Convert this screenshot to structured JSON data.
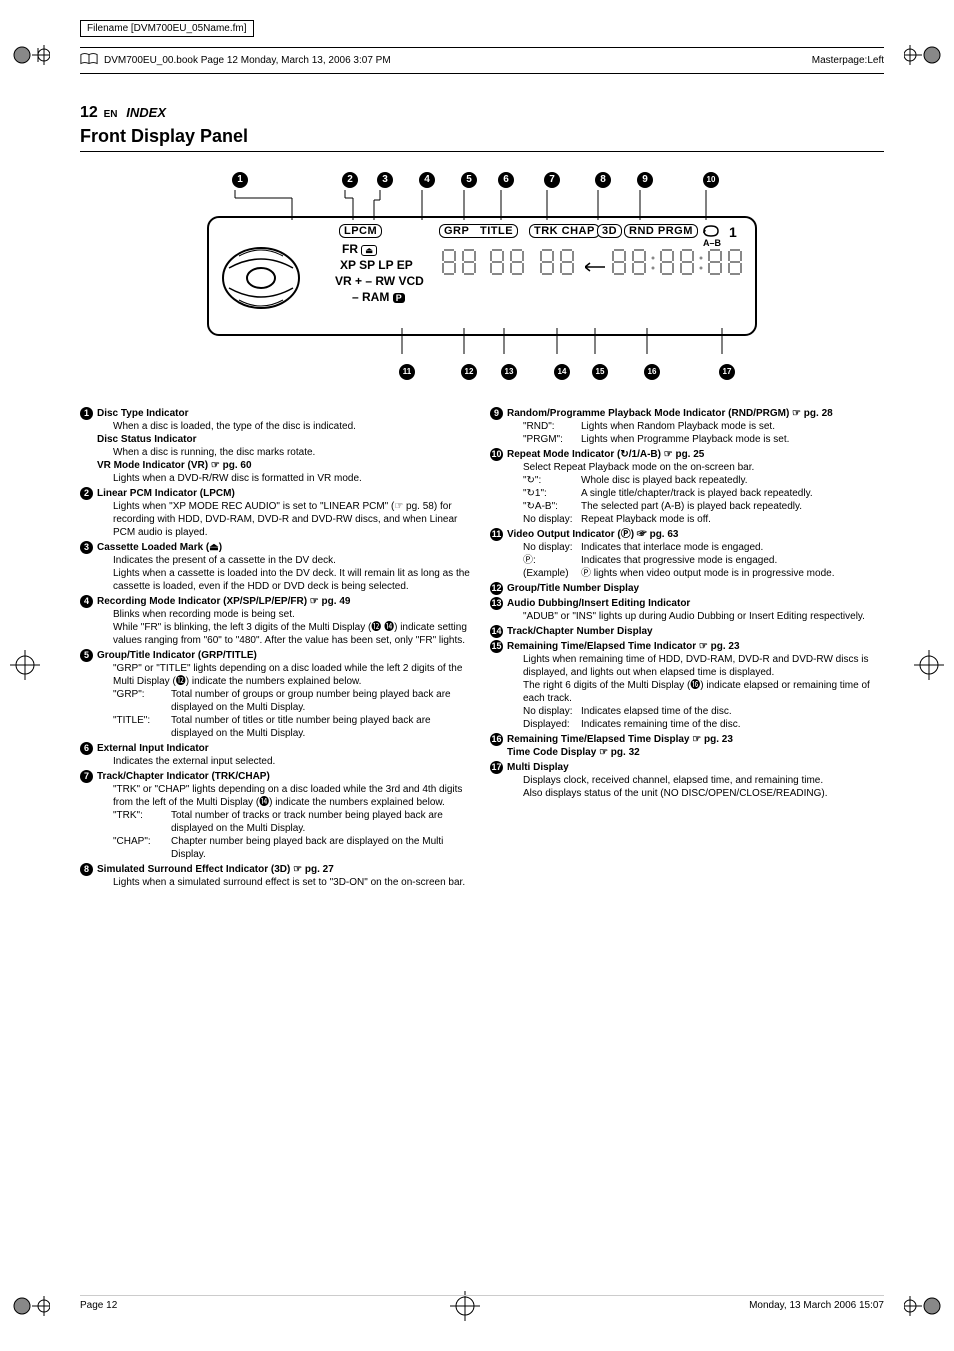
{
  "meta": {
    "filename": "Filename [DVM700EU_05Name.fm]",
    "bookinfo": "DVM700EU_00.book  Page 12  Monday, March 13, 2006  3:07 PM",
    "masterpage": "Masterpage:Left",
    "page_num": "12",
    "page_lang": "EN",
    "index": "INDEX",
    "section": "Front Display Panel"
  },
  "diagram": {
    "top_nums": [
      "A",
      "B",
      "C",
      "D",
      "E",
      "F",
      "G",
      "H",
      "I",
      "J"
    ],
    "bot_nums": [
      "K",
      "L",
      "M",
      "N",
      "O",
      "P",
      "Q"
    ],
    "labels": {
      "lpcm": "LPCM",
      "fr": "FR",
      "xp": "XP SP LP EP",
      "vr": "VR   + – RW  VCD",
      "ram": "– RAM",
      "grp": "GRP",
      "title": "TITLE",
      "trk": "TRK CHAP",
      "threeD": "3D",
      "rnd": "RND  PRGM",
      "one": "1",
      "ab": "A–B"
    }
  },
  "left_col": [
    {
      "n": "A",
      "title": "Disc Type Indicator",
      "body": [
        "When a disc is loaded, the type of the disc is indicated."
      ],
      "extra": [
        {
          "title": "Disc Status Indicator",
          "body": [
            "When a disc is running, the disc marks rotate."
          ]
        },
        {
          "title": "VR Mode Indicator (VR) ☞ pg. 60",
          "body": [
            "Lights when a DVD-R/RW disc is formatted in VR mode."
          ]
        }
      ]
    },
    {
      "n": "B",
      "title": "Linear PCM Indicator (LPCM)",
      "body": [
        "Lights when \"XP MODE REC AUDIO\" is set to \"LINEAR PCM\" (☞ pg. 58) for recording with HDD, DVD-RAM, DVD-R and DVD-RW discs, and when Linear PCM audio is played."
      ]
    },
    {
      "n": "C",
      "title": "Cassette Loaded Mark (⏏)",
      "body": [
        "Indicates the present of a cassette in the DV deck.",
        "Lights when a cassette is loaded into the DV deck. It will remain lit as long as the cassette is loaded, even if the HDD or DVD deck is being selected."
      ]
    },
    {
      "n": "D",
      "title": "Recording Mode Indicator (XP/SP/LP/EP/FR) ☞ pg. 49",
      "body": [
        "Blinks when recording mode is being set.",
        "While \"FR\" is blinking, the left 3 digits of the Multi Display (⓬ ⓮) indicate setting values ranging from \"60\" to \"480\". After the value has been set, only \"FR\" lights."
      ]
    },
    {
      "n": "E",
      "title": "Group/Title Indicator (GRP/TITLE)",
      "body": [
        "\"GRP\" or \"TITLE\" lights depending on a disc loaded while the left 2 digits of the Multi Display (⓬) indicate the numbers explained below."
      ],
      "subs": [
        {
          "k": "\"GRP\":",
          "v": "Total number of groups or group number being played back are displayed on the Multi Display."
        },
        {
          "k": "\"TITLE\":",
          "v": "Total number of titles or title number being played back are displayed on the Multi Display."
        }
      ]
    },
    {
      "n": "F",
      "title": "External Input Indicator",
      "body": [
        "Indicates the external input selected."
      ]
    },
    {
      "n": "G",
      "title": "Track/Chapter Indicator (TRK/CHAP)",
      "body": [
        "\"TRK\" or \"CHAP\" lights depending on a disc loaded while the 3rd and 4th digits from the left of the Multi Display (⓮) indicate the numbers explained below."
      ],
      "subs": [
        {
          "k": "\"TRK\":",
          "v": "Total number of tracks or track number being played back are displayed on the Multi Display."
        },
        {
          "k": "\"CHAP\":",
          "v": "Chapter number being played back are displayed on the Multi Display."
        }
      ]
    },
    {
      "n": "H",
      "title": "Simulated Surround Effect Indicator (3D) ☞ pg. 27",
      "body": [
        "Lights when a simulated surround effect is set to \"3D-ON\" on the on-screen bar."
      ]
    }
  ],
  "right_col": [
    {
      "n": "I",
      "title": "Random/Programme Playback Mode Indicator (RND/PRGM) ☞ pg. 28",
      "subs": [
        {
          "k": "\"RND\":",
          "v": "Lights when Random Playback mode is set."
        },
        {
          "k": "\"PRGM\":",
          "v": "Lights when Programme Playback mode is set."
        }
      ]
    },
    {
      "n": "J",
      "title": "Repeat Mode Indicator (↻/1/A-B) ☞ pg. 25",
      "body": [
        "Select Repeat Playback mode on the on-screen bar."
      ],
      "subs": [
        {
          "k": "\"↻\":",
          "v": "Whole disc is played back repeatedly."
        },
        {
          "k": "\"↻1\":",
          "v": "A single title/chapter/track is played back repeatedly."
        },
        {
          "k": "\"↻A-B\":",
          "v": "The selected part (A-B) is played back repeatedly."
        },
        {
          "k": "No display:",
          "v": "Repeat Playback mode is off."
        }
      ]
    },
    {
      "n": "K",
      "title": "Video Output Indicator (Ⓟ) ☞ pg. 63",
      "subs": [
        {
          "k": "No display:",
          "v": "Indicates that interlace mode is engaged."
        },
        {
          "k": "Ⓟ:",
          "v": "Indicates that progressive mode is engaged."
        },
        {
          "k": "(Example)",
          "v": "Ⓟ lights when video output mode is in progressive mode."
        }
      ]
    },
    {
      "n": "L",
      "title": "Group/Title Number Display"
    },
    {
      "n": "M",
      "title": "Audio Dubbing/Insert Editing Indicator",
      "body": [
        "\"ADUB\" or \"INS\" lights up during Audio Dubbing or Insert Editing respectively."
      ]
    },
    {
      "n": "N",
      "title": "Track/Chapter Number Display"
    },
    {
      "n": "O",
      "title": "Remaining Time/Elapsed Time Indicator ☞ pg. 23",
      "body": [
        "Lights when remaining time of HDD, DVD-RAM, DVD-R and DVD-RW discs is displayed, and lights out when elapsed time is displayed.",
        "The right 6 digits of the Multi Display (⓰) indicate elapsed or remaining time of each track."
      ],
      "subs": [
        {
          "k": "No display:",
          "v": "Indicates elapsed time of the disc."
        },
        {
          "k": "Displayed:",
          "v": "Indicates remaining time of the disc."
        }
      ]
    },
    {
      "n": "P",
      "title": "Remaining Time/Elapsed Time Display ☞ pg. 23",
      "extra": [
        {
          "title": "Time Code Display ☞ pg. 32"
        }
      ]
    },
    {
      "n": "Q",
      "title": "Multi Display",
      "body": [
        "Displays clock, received channel, elapsed time, and remaining time.",
        "Also displays status of the unit (NO DISC/OPEN/CLOSE/READING)."
      ]
    }
  ],
  "footer": {
    "left": "Page 12",
    "right": "Monday, 13 March 2006  15:07"
  },
  "colors": {
    "text": "#000000",
    "bg": "#ffffff",
    "seg_stroke": "#888888"
  }
}
